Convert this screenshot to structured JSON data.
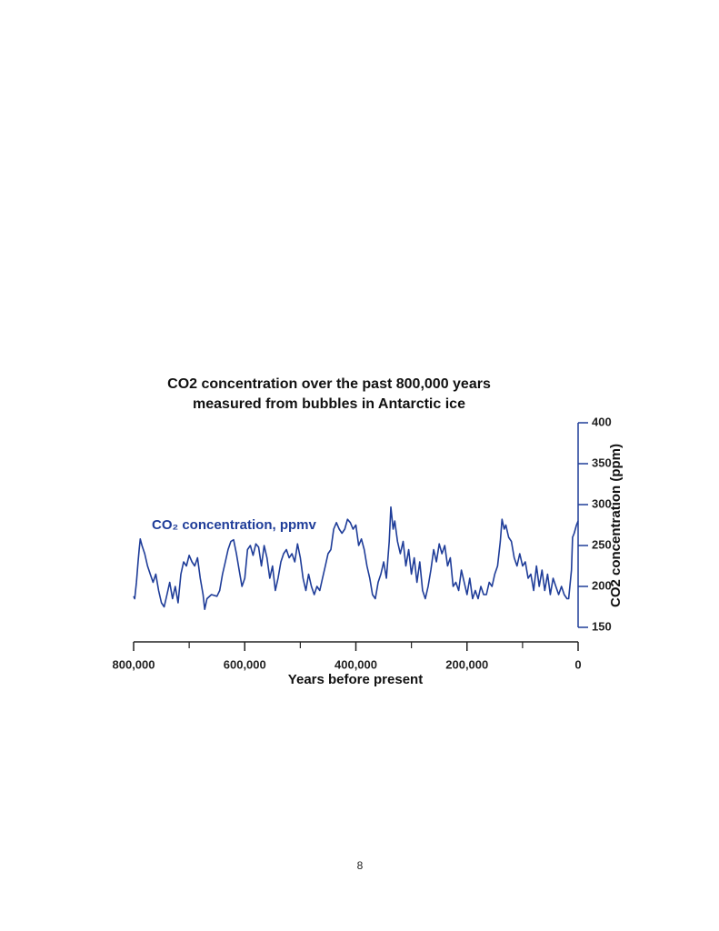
{
  "page_number": "8",
  "chart_data": {
    "type": "line",
    "title": [
      "CO2 concentration over the past 800,000 years",
      "measured from bubbles in Antarctic ice"
    ],
    "x_label": "Years before present",
    "y_label": "CO2 concentration (ppm)",
    "xlim": [
      800000,
      0
    ],
    "xticks": [
      {
        "value": 800000,
        "label": "800,000"
      },
      {
        "value": 600000,
        "label": "600,000"
      },
      {
        "value": 400000,
        "label": "400,000"
      },
      {
        "value": 200000,
        "label": "200,000"
      },
      0
    ],
    "x_minor_ticks": [
      700000,
      500000,
      300000,
      100000
    ],
    "ylim": [
      150,
      400
    ],
    "yticks": [
      150,
      200,
      250,
      300,
      350,
      400
    ],
    "y_axis_side": "right",
    "x": [
      800000,
      798000,
      795000,
      792000,
      790000,
      788000,
      785000,
      780000,
      775000,
      770000,
      765000,
      760000,
      755000,
      750000,
      745000,
      740000,
      735000,
      730000,
      725000,
      720000,
      715000,
      710000,
      705000,
      700000,
      695000,
      690000,
      685000,
      680000,
      675000,
      672000,
      668000,
      660000,
      650000,
      645000,
      640000,
      635000,
      630000,
      625000,
      620000,
      615000,
      610000,
      605000,
      600000,
      595000,
      590000,
      585000,
      580000,
      575000,
      570000,
      565000,
      560000,
      555000,
      550000,
      545000,
      540000,
      535000,
      530000,
      525000,
      520000,
      515000,
      510000,
      505000,
      500000,
      495000,
      490000,
      485000,
      480000,
      475000,
      470000,
      465000,
      460000,
      455000,
      450000,
      445000,
      440000,
      435000,
      430000,
      425000,
      420000,
      415000,
      410000,
      405000,
      400000,
      395000,
      390000,
      385000,
      380000,
      375000,
      370000,
      365000,
      360000,
      355000,
      350000,
      345000,
      340000,
      337000,
      333000,
      330000,
      325000,
      320000,
      315000,
      310000,
      305000,
      300000,
      295000,
      290000,
      285000,
      280000,
      275000,
      270000,
      265000,
      260000,
      255000,
      250000,
      245000,
      240000,
      235000,
      230000,
      225000,
      220000,
      215000,
      210000,
      205000,
      200000,
      195000,
      190000,
      185000,
      180000,
      175000,
      170000,
      165000,
      160000,
      155000,
      150000,
      145000,
      140000,
      137000,
      133000,
      130000,
      125000,
      120000,
      115000,
      110000,
      105000,
      100000,
      95000,
      90000,
      85000,
      80000,
      75000,
      70000,
      65000,
      60000,
      55000,
      50000,
      45000,
      40000,
      35000,
      30000,
      25000,
      20000,
      17000,
      12000,
      10000,
      7000,
      3000,
      0
    ],
    "series": [
      {
        "name": "CO₂ concentration, ppmv",
        "color": "#1f3d99",
        "values": [
          188,
          185,
          205,
          230,
          245,
          258,
          250,
          240,
          225,
          215,
          205,
          215,
          195,
          180,
          175,
          190,
          205,
          185,
          200,
          180,
          215,
          230,
          225,
          238,
          230,
          225,
          235,
          210,
          190,
          172,
          185,
          190,
          188,
          195,
          215,
          230,
          245,
          255,
          257,
          240,
          220,
          200,
          210,
          245,
          250,
          238,
          252,
          248,
          225,
          250,
          235,
          210,
          225,
          195,
          210,
          230,
          240,
          245,
          235,
          240,
          230,
          252,
          235,
          210,
          195,
          215,
          200,
          190,
          200,
          195,
          210,
          225,
          240,
          245,
          270,
          278,
          270,
          265,
          270,
          282,
          278,
          270,
          275,
          250,
          258,
          245,
          225,
          210,
          190,
          185,
          205,
          215,
          230,
          210,
          255,
          297,
          270,
          280,
          255,
          240,
          255,
          225,
          245,
          215,
          235,
          205,
          230,
          195,
          185,
          200,
          220,
          245,
          230,
          252,
          240,
          250,
          225,
          235,
          200,
          205,
          195,
          220,
          205,
          190,
          210,
          185,
          195,
          185,
          200,
          190,
          190,
          205,
          200,
          215,
          225,
          255,
          282,
          270,
          275,
          260,
          255,
          235,
          225,
          240,
          225,
          230,
          210,
          215,
          195,
          225,
          200,
          220,
          195,
          215,
          190,
          210,
          200,
          190,
          200,
          190,
          185,
          185,
          220,
          260,
          265,
          275,
          280
        ]
      }
    ]
  }
}
